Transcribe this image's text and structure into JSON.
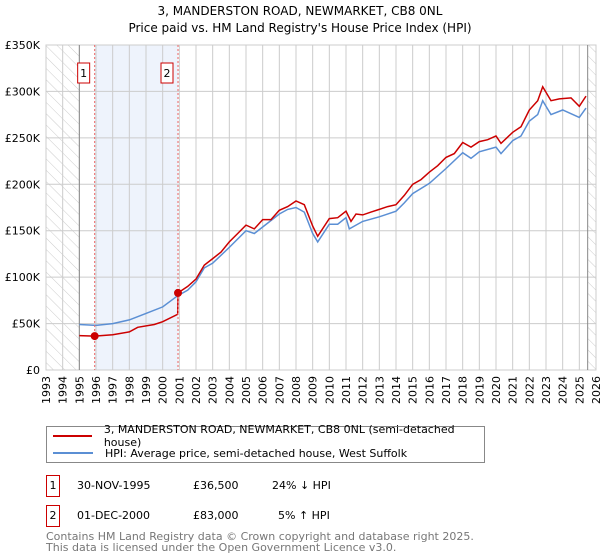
{
  "chart_data": {
    "type": "line",
    "title": "3, MANDERSTON ROAD, NEWMARKET, CB8 0NL",
    "subtitle": "Price paid vs. HM Land Registry's House Price Index (HPI)",
    "xlim": [
      1993,
      2026
    ],
    "ylim": [
      0,
      350000
    ],
    "x_ticks": [
      "1993",
      "1994",
      "1995",
      "1996",
      "1997",
      "1998",
      "1999",
      "2000",
      "2001",
      "2002",
      "2003",
      "2004",
      "2005",
      "2006",
      "2007",
      "2008",
      "2009",
      "2010",
      "2011",
      "2012",
      "2013",
      "2014",
      "2015",
      "2016",
      "2017",
      "2018",
      "2019",
      "2020",
      "2021",
      "2022",
      "2023",
      "2024",
      "2025",
      "2026"
    ],
    "y_ticks": [
      {
        "v": 0,
        "label": "£0"
      },
      {
        "v": 50000,
        "label": "£50K"
      },
      {
        "v": 100000,
        "label": "£100K"
      },
      {
        "v": 150000,
        "label": "£150K"
      },
      {
        "v": 200000,
        "label": "£200K"
      },
      {
        "v": 250000,
        "label": "£250K"
      },
      {
        "v": 300000,
        "label": "£300K"
      },
      {
        "v": 350000,
        "label": "£350K"
      }
    ],
    "grid": true,
    "hatched_ranges": [
      [
        1993,
        1995
      ],
      [
        2025.5,
        2026
      ]
    ],
    "series": [
      {
        "name": "3, MANDERSTON ROAD, NEWMARKET, CB8 0NL (semi-detached house)",
        "color": "#cc0000",
        "x": [
          1995.0,
          1995.92,
          1997,
          1998,
          1998.5,
          1999.5,
          2000,
          2000.9,
          2000.92,
          2001.5,
          2002,
          2002.5,
          2003,
          2003.5,
          2004,
          2004.5,
          2005,
          2005.5,
          2006,
          2006.5,
          2007,
          2007.5,
          2008,
          2008.5,
          2009,
          2009.3,
          2010,
          2010.5,
          2011,
          2011.3,
          2011.6,
          2012,
          2012.5,
          2013,
          2013.5,
          2014,
          2014.5,
          2015,
          2015.5,
          2016,
          2016.5,
          2017,
          2017.5,
          2018,
          2018.5,
          2019,
          2019.5,
          2020,
          2020.3,
          2021,
          2021.5,
          2022,
          2022.5,
          2022.8,
          2023.3,
          2023.8,
          2024.5,
          2025,
          2025.4
        ],
        "y": [
          37,
          36.5,
          38,
          41,
          46,
          49,
          52,
          60,
          83,
          90,
          98,
          113,
          120,
          127,
          138,
          147,
          156,
          152,
          162,
          162,
          172,
          176,
          182,
          178,
          155,
          144,
          163,
          164,
          171,
          160,
          168,
          167,
          170,
          173,
          176,
          178,
          188,
          200,
          205,
          213,
          220,
          229,
          233,
          245,
          240,
          246,
          248,
          252,
          244,
          256,
          262,
          280,
          290,
          305,
          290,
          292,
          293,
          284,
          295
        ]
      },
      {
        "name": "HPI: Average price, semi-detached house, West Suffolk",
        "color": "#5b8fd4",
        "x": [
          1995,
          1996,
          1997,
          1998,
          1999,
          2000,
          2000.9,
          2001.5,
          2002,
          2002.5,
          2003,
          2004,
          2005,
          2005.5,
          2006,
          2007,
          2007.5,
          2008,
          2008.5,
          2009,
          2009.3,
          2010,
          2010.5,
          2011,
          2011.2,
          2012,
          2013,
          2014,
          2014.5,
          2015,
          2016,
          2017,
          2018,
          2018.5,
          2019,
          2020,
          2020.3,
          2021,
          2021.5,
          2022,
          2022.5,
          2022.8,
          2023.3,
          2024,
          2025,
          2025.4
        ],
        "y": [
          49,
          48,
          50,
          54,
          61,
          68,
          80,
          86,
          95,
          110,
          115,
          132,
          150,
          147,
          154,
          168,
          173,
          175,
          170,
          147,
          138,
          157,
          157,
          164,
          152,
          160,
          165,
          171,
          180,
          190,
          201,
          217,
          234,
          228,
          235,
          240,
          233,
          247,
          252,
          268,
          275,
          290,
          275,
          280,
          272,
          282
        ]
      }
    ],
    "y_units": "thousands GBP",
    "sales": [
      {
        "n": "1",
        "date": "30-NOV-1995",
        "x": 1995.92,
        "price": "£36,500",
        "value": 36.5,
        "hpi": "24% ↓ HPI"
      },
      {
        "n": "2",
        "date": "01-DEC-2000",
        "x": 2000.92,
        "price": "£83,000",
        "value": 83,
        "hpi": "5% ↑ HPI"
      }
    ]
  },
  "footer": {
    "line1": "Contains HM Land Registry data © Crown copyright and database right 2025.",
    "line2": "This data is licensed under the Open Government Licence v3.0."
  }
}
